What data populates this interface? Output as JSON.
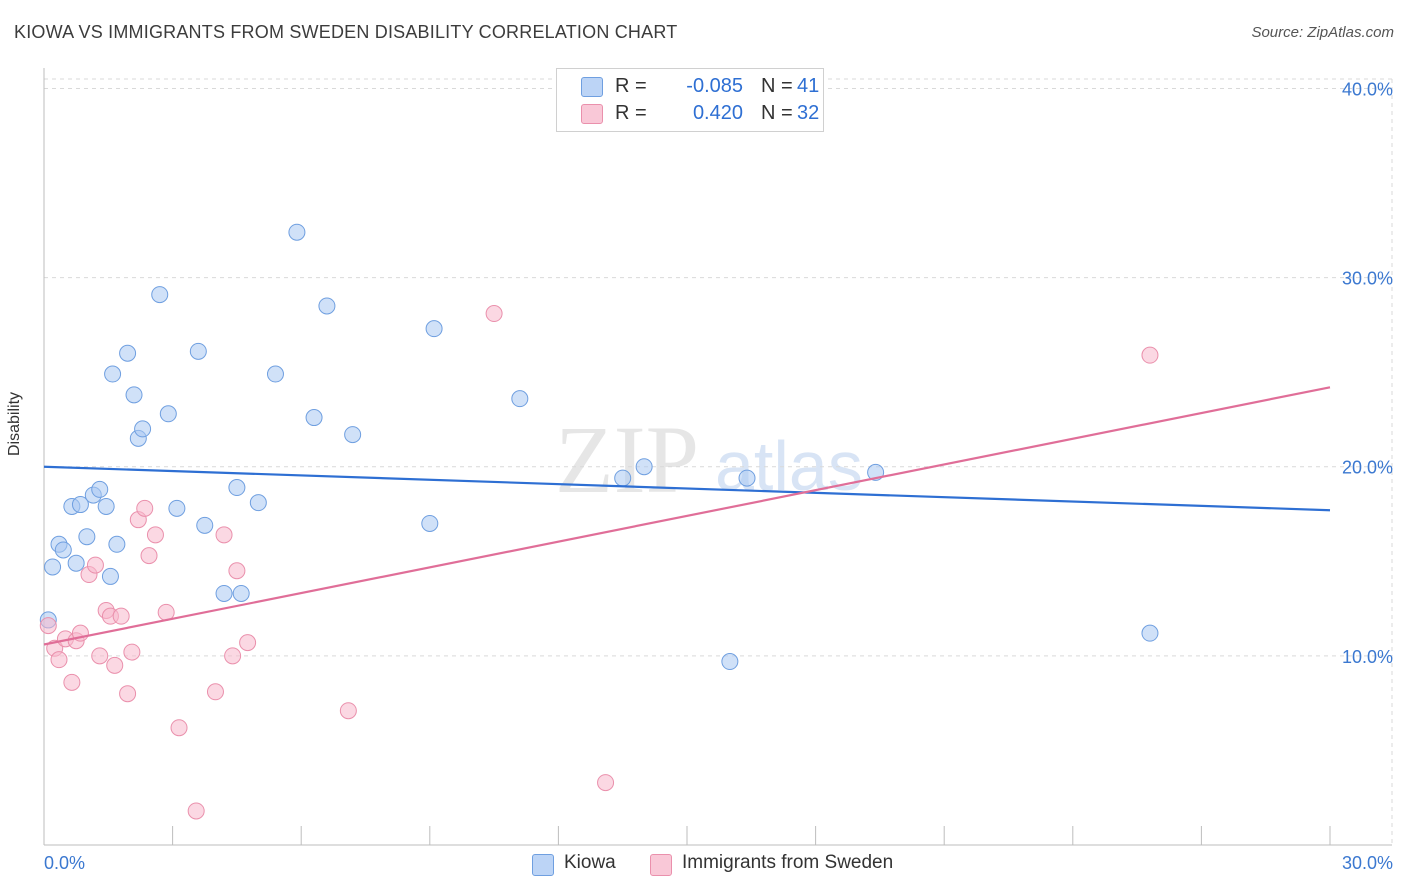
{
  "title": "KIOWA VS IMMIGRANTS FROM SWEDEN DISABILITY CORRELATION CHART",
  "source": "Source: ZipAtlas.com",
  "watermark": {
    "zip": "ZIP",
    "atlas": "atlas"
  },
  "legend": {
    "rows": [
      {
        "r_label": "R =",
        "r_value": "-0.085",
        "n_label": "N =",
        "n_value": "41",
        "fill": "#bcd4f6",
        "stroke": "#6f9fe0"
      },
      {
        "r_label": "R =",
        "r_value": "0.420",
        "n_label": "N =",
        "n_value": "32",
        "fill": "#f9c8d7",
        "stroke": "#ea90ac"
      }
    ]
  },
  "colors": {
    "kiowa": "#2e6fd3",
    "sweden": "#e06e98",
    "kiowa_fill": "#a9c8f2",
    "sweden_fill": "#f7b8cc",
    "grid": "#d9d9d9",
    "tick_text": "#3b78d0"
  },
  "chart_data": {
    "type": "scatter",
    "title": "KIOWA VS IMMIGRANTS FROM SWEDEN DISABILITY CORRELATION CHART",
    "xlabel": "",
    "ylabel": "Disability",
    "xlim": [
      0,
      30
    ],
    "ylim": [
      0,
      40.5
    ],
    "x_tick_labels": [
      "0.0%",
      "30.0%"
    ],
    "y_ticks": [
      10,
      20,
      30,
      40
    ],
    "y_tick_labels": [
      "10.0%",
      "20.0%",
      "30.0%",
      "40.0%"
    ],
    "x_minor_ticks": [
      0,
      3,
      6,
      9,
      12,
      15,
      18,
      21,
      24,
      27,
      30
    ],
    "grid": true,
    "series": [
      {
        "name": "Kiowa",
        "trend": {
          "x": [
            0,
            30
          ],
          "y": [
            20.0,
            17.7
          ]
        },
        "points": [
          [
            0.1,
            11.9
          ],
          [
            0.2,
            14.7
          ],
          [
            0.35,
            15.9
          ],
          [
            0.45,
            15.6
          ],
          [
            0.65,
            17.9
          ],
          [
            0.75,
            14.9
          ],
          [
            0.85,
            18.0
          ],
          [
            1.0,
            16.3
          ],
          [
            1.15,
            18.5
          ],
          [
            1.3,
            18.8
          ],
          [
            1.45,
            17.9
          ],
          [
            1.55,
            14.2
          ],
          [
            1.6,
            24.9
          ],
          [
            1.7,
            15.9
          ],
          [
            1.95,
            26.0
          ],
          [
            2.1,
            23.8
          ],
          [
            2.2,
            21.5
          ],
          [
            2.3,
            22.0
          ],
          [
            2.7,
            29.1
          ],
          [
            2.9,
            22.8
          ],
          [
            3.1,
            17.8
          ],
          [
            3.6,
            26.1
          ],
          [
            3.75,
            16.9
          ],
          [
            4.2,
            13.3
          ],
          [
            4.6,
            13.3
          ],
          [
            4.5,
            18.9
          ],
          [
            5.0,
            18.1
          ],
          [
            5.4,
            24.9
          ],
          [
            5.9,
            32.4
          ],
          [
            6.3,
            22.6
          ],
          [
            6.6,
            28.5
          ],
          [
            7.2,
            21.7
          ],
          [
            9.0,
            17.0
          ],
          [
            9.1,
            27.3
          ],
          [
            11.1,
            23.6
          ],
          [
            13.5,
            19.4
          ],
          [
            14.0,
            20.0
          ],
          [
            16.0,
            9.7
          ],
          [
            16.4,
            19.4
          ],
          [
            19.4,
            19.7
          ],
          [
            25.8,
            11.2
          ]
        ]
      },
      {
        "name": "Immigrants from Sweden",
        "trend": {
          "x": [
            0,
            30
          ],
          "y": [
            10.6,
            24.2
          ]
        },
        "points": [
          [
            0.1,
            11.6
          ],
          [
            0.25,
            10.4
          ],
          [
            0.35,
            9.8
          ],
          [
            0.5,
            10.9
          ],
          [
            0.65,
            8.6
          ],
          [
            0.75,
            10.8
          ],
          [
            0.85,
            11.2
          ],
          [
            1.05,
            14.3
          ],
          [
            1.2,
            14.8
          ],
          [
            1.3,
            10.0
          ],
          [
            1.45,
            12.4
          ],
          [
            1.55,
            12.1
          ],
          [
            1.65,
            9.5
          ],
          [
            1.8,
            12.1
          ],
          [
            1.95,
            8.0
          ],
          [
            2.05,
            10.2
          ],
          [
            2.2,
            17.2
          ],
          [
            2.35,
            17.8
          ],
          [
            2.45,
            15.3
          ],
          [
            2.6,
            16.4
          ],
          [
            2.85,
            12.3
          ],
          [
            3.15,
            6.2
          ],
          [
            3.55,
            1.8
          ],
          [
            4.0,
            8.1
          ],
          [
            4.2,
            16.4
          ],
          [
            4.4,
            10.0
          ],
          [
            4.5,
            14.5
          ],
          [
            4.75,
            10.7
          ],
          [
            7.1,
            7.1
          ],
          [
            10.5,
            28.1
          ],
          [
            13.1,
            3.3
          ],
          [
            25.8,
            25.9
          ]
        ]
      }
    ]
  },
  "bottom_legend": [
    "Kiowa",
    "Immigrants from Sweden"
  ]
}
